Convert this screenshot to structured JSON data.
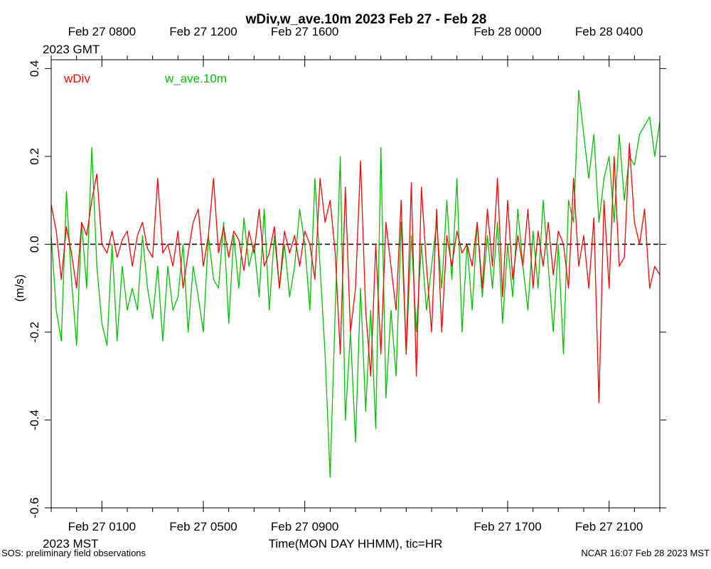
{
  "chart_data": {
    "type": "line",
    "title": "wDiv,w_ave.10m 2023 Feb 27 - Feb 28",
    "ylabel": "(m/s)",
    "xlabel": "Time(MON DAY HHMM), tic=HR",
    "ylim": [
      -0.6,
      0.42
    ],
    "xlim": [
      -1,
      23
    ],
    "x_unit": "hours since Feb 27 0000 MST",
    "yticks": [
      {
        "value": 0.4,
        "label": "0.4"
      },
      {
        "value": 0.2,
        "label": "0.2"
      },
      {
        "value": 0.0,
        "label": "0.0"
      },
      {
        "value": -0.2,
        "label": "-0.2"
      },
      {
        "value": -0.4,
        "label": "-0.4"
      },
      {
        "value": -0.6,
        "label": "-0.6"
      }
    ],
    "bottom_ticks": [
      {
        "x": 1,
        "label": "Feb 27 0100"
      },
      {
        "x": 5,
        "label": "Feb 27 0500"
      },
      {
        "x": 9,
        "label": "Feb 27 0900"
      },
      {
        "x": 17,
        "label": "Feb 27 1700"
      },
      {
        "x": 21,
        "label": "Feb 27 2100"
      }
    ],
    "bottom_corner_label": "2023 MST",
    "top_ticks": [
      {
        "x": 1,
        "label": "Feb 27 0800"
      },
      {
        "x": 5,
        "label": "Feb 27 1200"
      },
      {
        "x": 9,
        "label": "Feb 27 1600"
      },
      {
        "x": 17,
        "label": "Feb 28 0000"
      },
      {
        "x": 21,
        "label": "Feb 28 0400"
      }
    ],
    "top_corner_label": "2023 GMT",
    "reference_line": {
      "y": 0,
      "style": "dashed"
    },
    "series": [
      {
        "name": "wDiv",
        "color": "#ff0000",
        "x": [
          -1,
          -0.8,
          -0.6,
          -0.4,
          -0.2,
          0,
          0.2,
          0.4,
          0.6,
          0.8,
          1,
          1.2,
          1.4,
          1.6,
          1.8,
          2,
          2.2,
          2.4,
          2.6,
          2.8,
          3,
          3.2,
          3.4,
          3.6,
          3.8,
          4,
          4.2,
          4.4,
          4.6,
          4.8,
          5,
          5.2,
          5.4,
          5.6,
          5.8,
          6,
          6.2,
          6.4,
          6.6,
          6.8,
          7,
          7.2,
          7.4,
          7.6,
          7.8,
          8,
          8.2,
          8.4,
          8.6,
          8.8,
          9,
          9.2,
          9.4,
          9.6,
          9.8,
          10,
          10.2,
          10.4,
          10.6,
          10.8,
          11,
          11.2,
          11.4,
          11.6,
          11.8,
          12,
          12.2,
          12.4,
          12.6,
          12.8,
          13,
          13.2,
          13.4,
          13.6,
          13.8,
          14,
          14.2,
          14.4,
          14.6,
          14.8,
          15,
          15.2,
          15.4,
          15.6,
          15.8,
          16,
          16.2,
          16.4,
          16.6,
          16.8,
          17,
          17.2,
          17.4,
          17.6,
          17.8,
          18,
          18.2,
          18.4,
          18.6,
          18.8,
          19,
          19.2,
          19.4,
          19.6,
          19.8,
          20,
          20.2,
          20.4,
          20.6,
          20.8,
          21,
          21.2,
          21.4,
          21.6,
          21.8,
          22,
          22.2,
          22.4,
          22.6,
          22.8,
          23
        ],
        "y": [
          0.09,
          0.03,
          -0.08,
          0.04,
          -0.02,
          -0.1,
          0.05,
          0.02,
          0.1,
          0.16,
          0.0,
          -0.02,
          0.03,
          -0.03,
          0.01,
          0.03,
          -0.05,
          0.02,
          0.05,
          -0.01,
          -0.03,
          0.15,
          -0.02,
          0.0,
          -0.05,
          0.03,
          -0.1,
          -0.02,
          0.05,
          0.08,
          -0.05,
          0.02,
          0.15,
          -0.02,
          0.04,
          -0.03,
          0.03,
          0.01,
          -0.06,
          0.03,
          -0.02,
          0.08,
          -0.05,
          -0.02,
          0.04,
          -0.1,
          0.03,
          -0.02,
          0.02,
          -0.05,
          0.03,
          0.0,
          -0.08,
          0.15,
          0.05,
          0.1,
          -0.02,
          -0.25,
          0.13,
          -0.2,
          -0.1,
          0.19,
          -0.15,
          -0.3,
          0.0,
          -0.25,
          0.05,
          -0.05,
          -0.15,
          0.1,
          -0.25,
          0.14,
          -0.3,
          0.13,
          -0.05,
          -0.2,
          0.08,
          -0.2,
          0.02,
          -0.05,
          0.03,
          -0.02,
          0.0,
          -0.05,
          0.05,
          -0.1,
          0.08,
          -0.05,
          0.15,
          -0.12,
          0.1,
          -0.08,
          0.02,
          -0.05,
          0.08,
          -0.1,
          0.03,
          -0.05,
          0.05,
          -0.07,
          0.03,
          0.0,
          -0.1,
          0.15,
          -0.05,
          0.02,
          -0.1,
          0.06,
          -0.36,
          0.1,
          -0.1,
          0.2,
          -0.05,
          -0.03,
          0.23,
          0.05,
          0.0,
          0.08,
          -0.1,
          -0.05,
          -0.07
        ]
      },
      {
        "name": "w_ave.10m",
        "color": "#00c000",
        "x": [
          -1,
          -0.8,
          -0.6,
          -0.4,
          -0.2,
          0,
          0.2,
          0.4,
          0.6,
          0.8,
          1,
          1.2,
          1.4,
          1.6,
          1.8,
          2,
          2.2,
          2.4,
          2.6,
          2.8,
          3,
          3.2,
          3.4,
          3.6,
          3.8,
          4,
          4.2,
          4.4,
          4.6,
          4.8,
          5,
          5.2,
          5.4,
          5.6,
          5.8,
          6,
          6.2,
          6.4,
          6.6,
          6.8,
          7,
          7.2,
          7.4,
          7.6,
          7.8,
          8,
          8.2,
          8.4,
          8.6,
          8.8,
          9,
          9.2,
          9.4,
          9.6,
          9.8,
          10,
          10.2,
          10.4,
          10.6,
          10.8,
          11,
          11.2,
          11.4,
          11.6,
          11.8,
          12,
          12.2,
          12.4,
          12.6,
          12.8,
          13,
          13.2,
          13.4,
          13.6,
          13.8,
          14,
          14.2,
          14.4,
          14.6,
          14.8,
          15,
          15.2,
          15.4,
          15.6,
          15.8,
          16,
          16.2,
          16.4,
          16.6,
          16.8,
          17,
          17.2,
          17.4,
          17.6,
          17.8,
          18,
          18.2,
          18.4,
          18.6,
          18.8,
          19,
          19.2,
          19.4,
          19.6,
          19.8,
          20,
          20.2,
          20.4,
          20.6,
          20.8,
          21,
          21.2,
          21.4,
          21.6,
          21.8,
          22,
          22.2,
          22.4,
          22.6,
          22.8,
          23
        ],
        "y": [
          0.02,
          -0.15,
          -0.22,
          0.12,
          -0.08,
          -0.23,
          0.05,
          -0.1,
          0.22,
          -0.05,
          -0.18,
          -0.23,
          0.0,
          -0.22,
          -0.05,
          -0.15,
          -0.1,
          -0.15,
          0.02,
          -0.1,
          -0.17,
          -0.05,
          -0.22,
          -0.05,
          -0.15,
          -0.12,
          0.0,
          -0.2,
          -0.05,
          -0.12,
          -0.2,
          0.02,
          -0.08,
          -0.1,
          0.05,
          -0.18,
          0.02,
          -0.1,
          0.06,
          -0.05,
          0.0,
          -0.12,
          0.08,
          -0.15,
          0.02,
          -0.1,
          0.0,
          -0.12,
          -0.05,
          0.08,
          0.0,
          -0.15,
          0.15,
          -0.05,
          -0.25,
          -0.53,
          -0.15,
          0.2,
          -0.4,
          -0.2,
          -0.45,
          -0.1,
          -0.38,
          -0.15,
          -0.42,
          0.22,
          -0.35,
          -0.15,
          -0.3,
          0.05,
          -0.25,
          0.02,
          -0.2,
          0.0,
          -0.15,
          -0.05,
          0.05,
          -0.1,
          0.1,
          -0.08,
          0.15,
          -0.2,
          0.0,
          -0.15,
          0.05,
          -0.12,
          0.02,
          -0.1,
          0.05,
          -0.18,
          0.0,
          -0.12,
          0.08,
          -0.05,
          -0.15,
          0.03,
          -0.1,
          0.1,
          -0.05,
          -0.2,
          0.0,
          -0.25,
          0.1,
          0.05,
          0.35,
          0.25,
          0.15,
          0.25,
          0.05,
          0.15,
          0.2,
          0.05,
          0.25,
          0.1,
          0.2,
          0.18,
          0.25,
          0.27,
          0.29,
          0.2,
          0.28
        ]
      }
    ]
  },
  "footer": {
    "left": "SOS: preliminary field observations",
    "right": "NCAR 16:07 Feb 28 2023 MST"
  }
}
